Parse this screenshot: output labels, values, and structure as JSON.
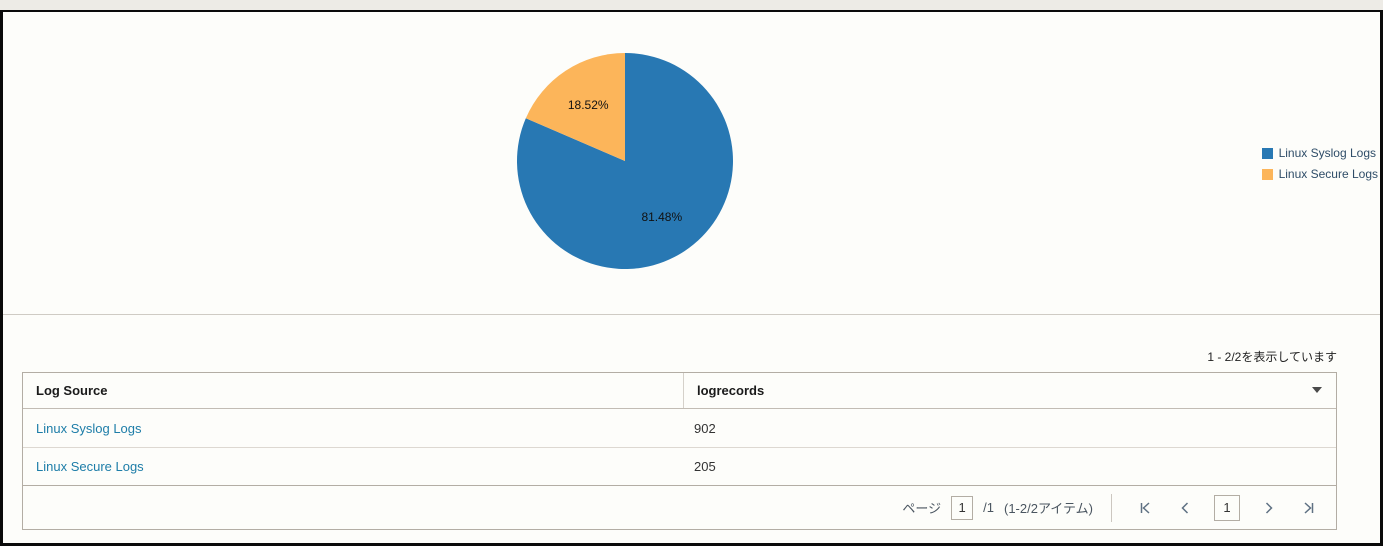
{
  "chart_data": {
    "type": "pie",
    "title": "",
    "label_format": "percent",
    "legend_position": "right",
    "series": [
      {
        "name": "Linux Syslog Logs",
        "value": 902,
        "percent": 81.48,
        "label": "81.48%",
        "color": "#2878b3"
      },
      {
        "name": "Linux Secure Logs",
        "value": 205,
        "percent": 18.52,
        "label": "18.52%",
        "color": "#fcb55a"
      }
    ]
  },
  "colors": {
    "series_blue": "#2878b3",
    "series_orange": "#fcb55a",
    "link": "#1d7da8",
    "legend_text": "#2f4d68"
  },
  "table": {
    "headers": {
      "col1": "Log Source",
      "col2": "logrecords"
    },
    "rows": [
      {
        "log_source": "Linux Syslog Logs",
        "logrecords": "902"
      },
      {
        "log_source": "Linux Secure Logs",
        "logrecords": "205"
      }
    ],
    "showing_text": "1 - 2/2を表示しています"
  },
  "pagination": {
    "page_label": "ページ",
    "page_input_value": "1",
    "page_total": "/1",
    "items_text": "(1-2/2アイテム)",
    "current_page_button": "1"
  }
}
